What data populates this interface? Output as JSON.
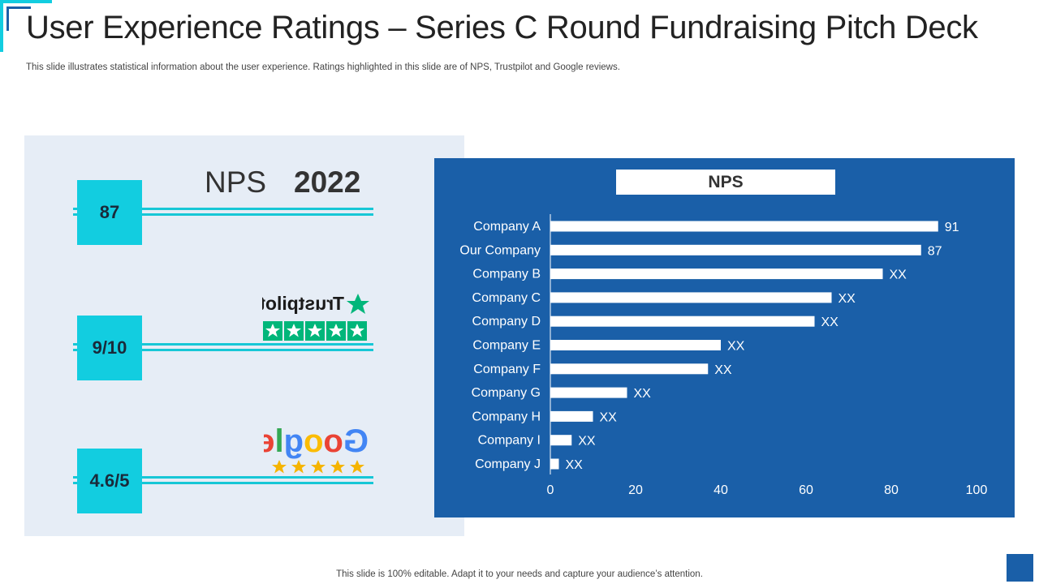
{
  "slide": {
    "title": "User Experience Ratings – Series C Round Fundraising Pitch Deck",
    "subtitle": "This slide illustrates statistical information about the user experience. Ratings highlighted in this slide are of NPS, Trustpilot and Google reviews.",
    "footer": "This slide is 100% editable. Adapt it to your needs and capture your audience’s attention."
  },
  "left_panel": {
    "nps_label": "NPS",
    "nps_year": "2022",
    "metrics": [
      {
        "value": "87",
        "logo": "nps-heading"
      },
      {
        "value": "9/10",
        "logo": "trustpilot-logo",
        "logo_text": "Trustpilot",
        "stars": 5
      },
      {
        "value": "4.6/5",
        "logo": "google-logo",
        "logo_text": "Google",
        "stars": 5
      }
    ]
  },
  "colors": {
    "accent_cyan": "#12cde0",
    "chart_bg": "#1a5fa8",
    "panel_bg": "#e6edf6",
    "trustpilot_green": "#00b67a",
    "star_gold": "#f5b400"
  },
  "chart_data": {
    "type": "bar",
    "orientation": "horizontal",
    "title": "NPS",
    "categories": [
      "Company A",
      "Our Company",
      "Company B",
      "Company C",
      "Company D",
      "Company E",
      "Company F",
      "Company G",
      "Company H",
      "Company I",
      "Company J"
    ],
    "values": [
      91,
      87,
      78,
      66,
      62,
      40,
      37,
      18,
      10,
      5,
      2
    ],
    "data_labels": [
      "91",
      "87",
      "XX",
      "XX",
      "XX",
      "XX",
      "XX",
      "XX",
      "XX",
      "XX",
      "XX"
    ],
    "xlim": [
      0,
      100
    ],
    "x_ticks": [
      "0",
      "20",
      "40",
      "60",
      "80",
      "100"
    ],
    "grid": false
  }
}
